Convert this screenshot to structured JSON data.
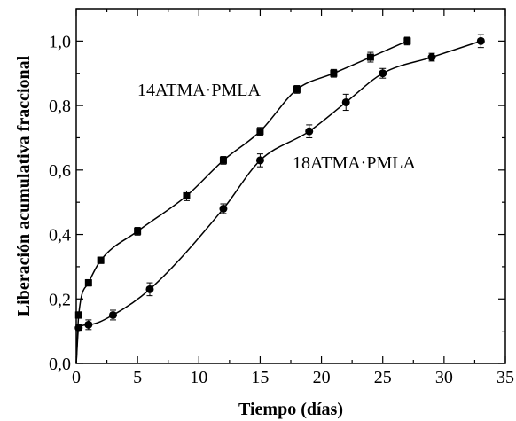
{
  "chart_data": {
    "type": "line",
    "xlabel": "Tiempo (días)",
    "ylabel": "Liberación acumulativa fraccional",
    "xlim": [
      0,
      35
    ],
    "ylim": [
      0,
      1.1
    ],
    "x_ticks": [
      0,
      5,
      10,
      15,
      20,
      25,
      30,
      35
    ],
    "x_tick_labels": [
      "0",
      "5",
      "10",
      "15",
      "20",
      "25",
      "30",
      "35"
    ],
    "y_ticks": [
      0,
      0.2,
      0.4,
      0.6,
      0.8,
      1.0
    ],
    "y_tick_labels": [
      "0,0",
      "0,2",
      "0,4",
      "0,6",
      "0,8",
      "1,0"
    ],
    "grid": false,
    "series": [
      {
        "name": "14ATMA·PMLA",
        "marker": "square",
        "x": [
          0.2,
          1,
          2,
          5,
          9,
          12,
          15,
          18,
          21,
          24,
          27
        ],
        "y": [
          0.15,
          0.25,
          0.32,
          0.41,
          0.52,
          0.63,
          0.72,
          0.85,
          0.9,
          0.95,
          1.0
        ],
        "err": [
          0.01,
          0.01,
          0.01,
          0.012,
          0.015,
          0.012,
          0.012,
          0.012,
          0.012,
          0.015,
          0.012
        ]
      },
      {
        "name": "18ATMA·PMLA",
        "marker": "circle",
        "x": [
          0.2,
          1,
          3,
          6,
          12,
          15,
          19,
          22,
          25,
          29,
          33
        ],
        "y": [
          0.11,
          0.12,
          0.15,
          0.23,
          0.48,
          0.63,
          0.72,
          0.81,
          0.9,
          0.95,
          1.0
        ],
        "err": [
          0.01,
          0.015,
          0.015,
          0.02,
          0.015,
          0.02,
          0.02,
          0.025,
          0.015,
          0.012,
          0.02
        ]
      }
    ]
  }
}
